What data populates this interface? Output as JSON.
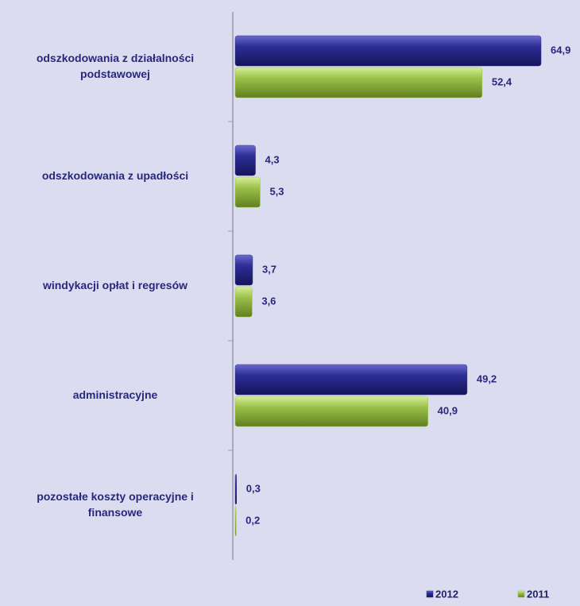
{
  "chart_data": {
    "type": "bar",
    "orientation": "horizontal",
    "categories": [
      "odszkodowania z działalności\npodstawowej",
      "odszkodowania z upadłości",
      "windykacji opłat i regresów",
      "administracyjne",
      "pozostałe koszty operacyjne i\nfinansowe"
    ],
    "series": [
      {
        "name": "2012",
        "color": "#2e2e96",
        "values": [
          64.9,
          4.3,
          3.7,
          49.2,
          0.3
        ],
        "value_labels": [
          "64,9",
          "4,3",
          "3,7",
          "49,2",
          "0,3"
        ]
      },
      {
        "name": "2011",
        "color": "#9cc14a",
        "values": [
          52.4,
          5.3,
          3.6,
          40.9,
          0.2
        ],
        "value_labels": [
          "52,4",
          "5,3",
          "3,6",
          "40,9",
          "0,2"
        ]
      }
    ]
  }
}
